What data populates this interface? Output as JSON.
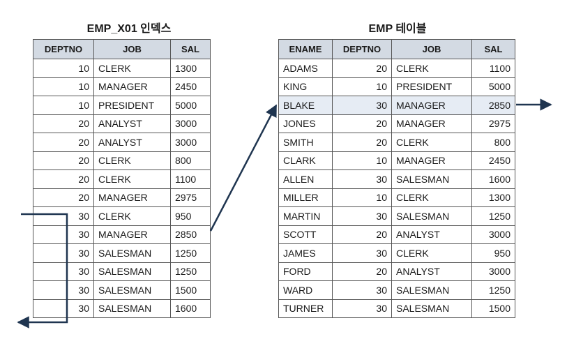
{
  "index_title": "EMP_X01 인덱스",
  "table_title": "EMP 테이블",
  "index": {
    "headers": [
      "DEPTNO",
      "JOB",
      "SAL"
    ],
    "rows": [
      [
        "10",
        "CLERK",
        "1300"
      ],
      [
        "10",
        "MANAGER",
        "2450"
      ],
      [
        "10",
        "PRESIDENT",
        "5000"
      ],
      [
        "20",
        "ANALYST",
        "3000"
      ],
      [
        "20",
        "ANALYST",
        "3000"
      ],
      [
        "20",
        "CLERK",
        "800"
      ],
      [
        "20",
        "CLERK",
        "1100"
      ],
      [
        "20",
        "MANAGER",
        "2975"
      ],
      [
        "30",
        "CLERK",
        "950"
      ],
      [
        "30",
        "MANAGER",
        "2850"
      ],
      [
        "30",
        "SALESMAN",
        "1250"
      ],
      [
        "30",
        "SALESMAN",
        "1250"
      ],
      [
        "30",
        "SALESMAN",
        "1500"
      ],
      [
        "30",
        "SALESMAN",
        "1600"
      ]
    ]
  },
  "emp": {
    "headers": [
      "ENAME",
      "DEPTNO",
      "JOB",
      "SAL"
    ],
    "rows": [
      [
        "ADAMS",
        "20",
        "CLERK",
        "1100"
      ],
      [
        "KING",
        "10",
        "PRESIDENT",
        "5000"
      ],
      [
        "BLAKE",
        "30",
        "MANAGER",
        "2850"
      ],
      [
        "JONES",
        "20",
        "MANAGER",
        "2975"
      ],
      [
        "SMITH",
        "20",
        "CLERK",
        "800"
      ],
      [
        "CLARK",
        "10",
        "MANAGER",
        "2450"
      ],
      [
        "ALLEN",
        "30",
        "SALESMAN",
        "1600"
      ],
      [
        "MILLER",
        "10",
        "CLERK",
        "1300"
      ],
      [
        "MARTIN",
        "30",
        "SALESMAN",
        "1250"
      ],
      [
        "SCOTT",
        "20",
        "ANALYST",
        "3000"
      ],
      [
        "JAMES",
        "30",
        "CLERK",
        "950"
      ],
      [
        "FORD",
        "20",
        "ANALYST",
        "3000"
      ],
      [
        "WARD",
        "30",
        "SALESMAN",
        "1250"
      ],
      [
        "TURNER",
        "30",
        "SALESMAN",
        "1500"
      ]
    ]
  },
  "highlight_color": "#e6ecf4",
  "header_color": "#d3dae3"
}
